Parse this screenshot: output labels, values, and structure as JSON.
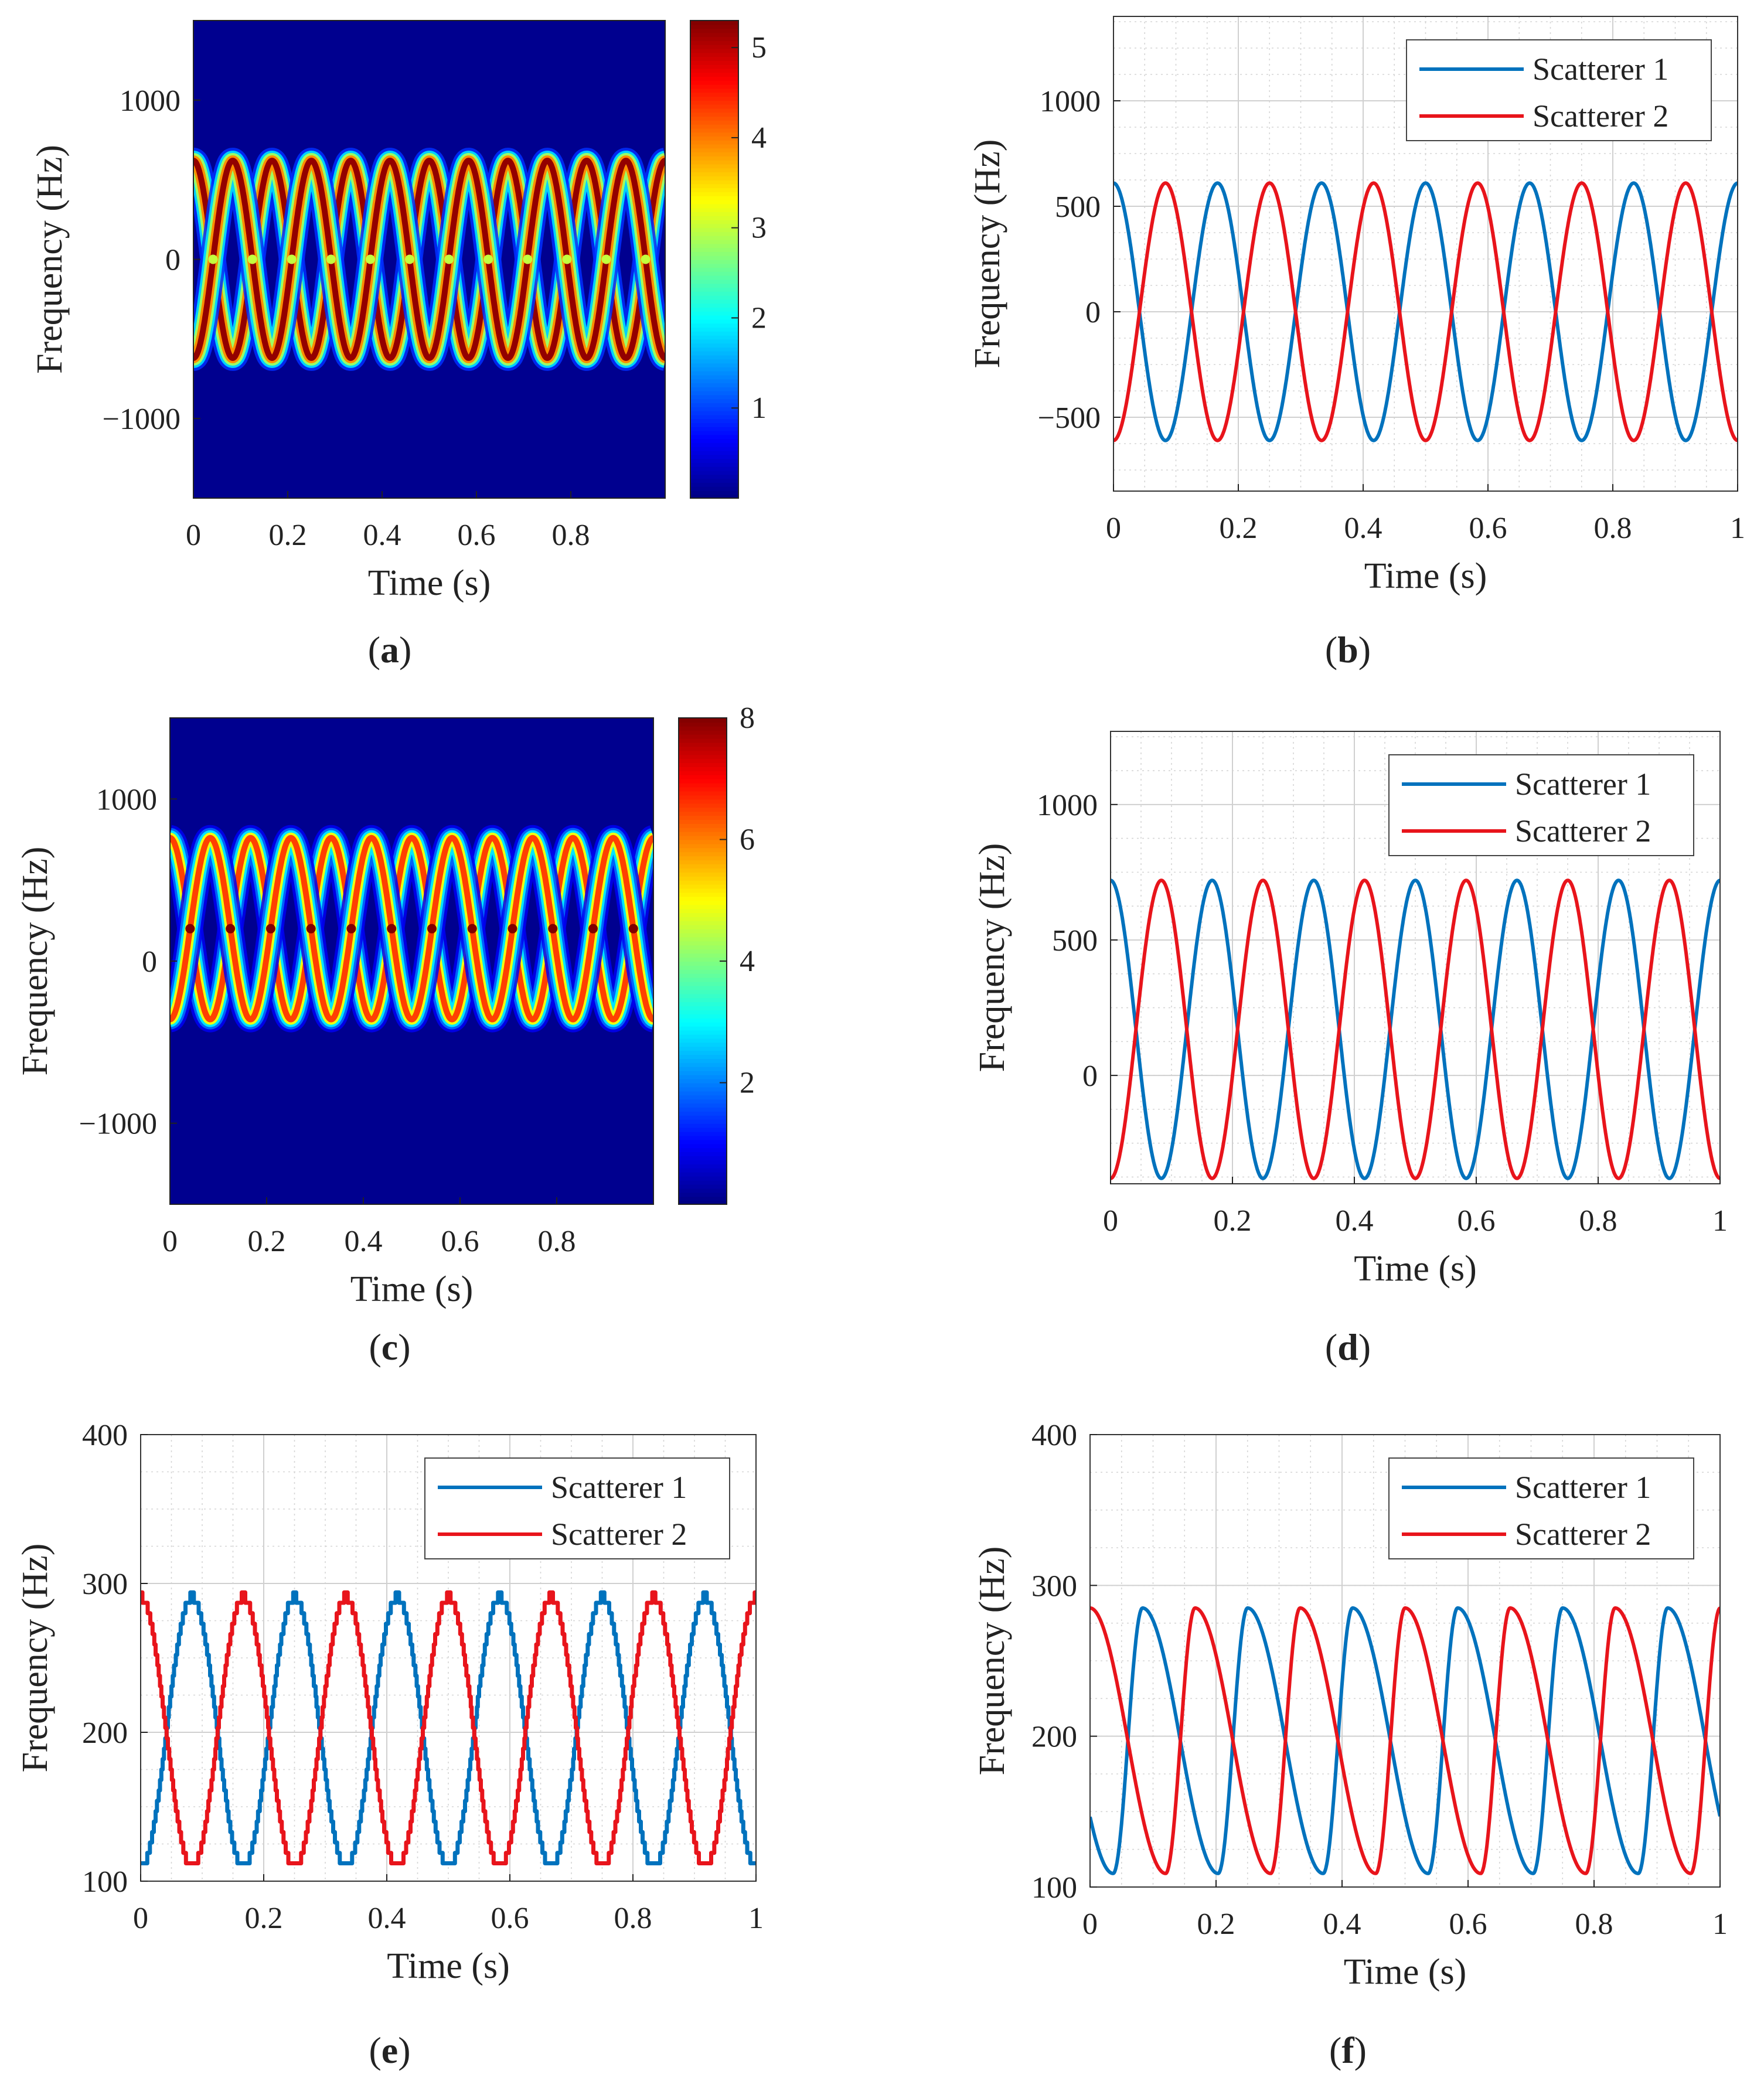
{
  "figure": {
    "panels": [
      "a",
      "b",
      "c",
      "d",
      "e",
      "f"
    ]
  },
  "chart_data": [
    {
      "id": "a",
      "type": "heatmap",
      "caption": "a",
      "xlabel": "Time (s)",
      "ylabel": "Frequency (Hz)",
      "xlim": [
        0,
        1
      ],
      "ylim": [
        -1500,
        1500
      ],
      "xticks": [
        0,
        0.2,
        0.4,
        0.6,
        0.8
      ],
      "xtick_labels": [
        "0",
        "0.2",
        "0.4",
        "0.6",
        "0.8"
      ],
      "yticks": [
        1000,
        0,
        -1000
      ],
      "ytick_labels": [
        "1000",
        "0",
        "−1000"
      ],
      "colorbar": {
        "min": 0,
        "max": 5.3,
        "ticks": [
          1,
          2,
          3,
          4,
          5
        ],
        "tick_labels": [
          "1",
          "2",
          "3",
          "4",
          "5"
        ]
      },
      "background_color": "#00008f",
      "curves": [
        {
          "name": "Scatterer 1",
          "offset": 0,
          "amplitude": 620,
          "period": 0.1667,
          "phase": 0
        },
        {
          "name": "Scatterer 2",
          "offset": 0,
          "amplitude": 620,
          "period": 0.1667,
          "phase": 3.14159
        }
      ],
      "peak_value": 5.2,
      "crossing_value": 3.0
    },
    {
      "id": "b",
      "type": "line",
      "caption": "b",
      "xlabel": "Time (s)",
      "ylabel": "Frequency (Hz)",
      "xlim": [
        0,
        1
      ],
      "ylim": [
        -850,
        1400
      ],
      "xticks": [
        0,
        0.2,
        0.4,
        0.6,
        0.8,
        1
      ],
      "xtick_labels": [
        "0",
        "0.2",
        "0.4",
        "0.6",
        "0.8",
        "1"
      ],
      "yticks": [
        1000,
        500,
        0,
        -500
      ],
      "ytick_labels": [
        "1000",
        "500",
        "0",
        "−500"
      ],
      "legend": "top-right",
      "series": [
        {
          "name": "Scatterer 1",
          "color": "#0072bd",
          "offset": 0,
          "amplitude": 610,
          "period": 0.1667,
          "phase": 0
        },
        {
          "name": "Scatterer 2",
          "color": "#e8141b",
          "offset": 0,
          "amplitude": 610,
          "period": 0.1667,
          "phase": 3.14159
        }
      ]
    },
    {
      "id": "c",
      "type": "heatmap",
      "caption": "c",
      "xlabel": "Time (s)",
      "ylabel": "Frequency (Hz)",
      "xlim": [
        0,
        1
      ],
      "ylim": [
        -1500,
        1500
      ],
      "xticks": [
        0,
        0.2,
        0.4,
        0.6,
        0.8
      ],
      "xtick_labels": [
        "0",
        "0.2",
        "0.4",
        "0.6",
        "0.8"
      ],
      "yticks": [
        1000,
        0,
        -1000
      ],
      "ytick_labels": [
        "1000",
        "0",
        "−1000"
      ],
      "colorbar": {
        "min": 0,
        "max": 8,
        "ticks": [
          2,
          4,
          6,
          8
        ],
        "tick_labels": [
          "2",
          "4",
          "6",
          "8"
        ]
      },
      "background_color": "#00008f",
      "curves": [
        {
          "name": "Scatterer 1",
          "offset": 200,
          "amplitude": 560,
          "period": 0.1667,
          "phase": 0
        },
        {
          "name": "Scatterer 2",
          "offset": 200,
          "amplitude": 560,
          "period": 0.1667,
          "phase": 3.14159
        }
      ],
      "peak_value": 6.5,
      "crossing_value": 8.0
    },
    {
      "id": "d",
      "type": "line",
      "caption": "d",
      "xlabel": "Time (s)",
      "ylabel": "Frequency (Hz)",
      "xlim": [
        0,
        1
      ],
      "ylim": [
        -400,
        1270
      ],
      "xticks": [
        0,
        0.2,
        0.4,
        0.6,
        0.8,
        1
      ],
      "xtick_labels": [
        "0",
        "0.2",
        "0.4",
        "0.6",
        "0.8",
        "1"
      ],
      "yticks": [
        1000,
        500,
        0
      ],
      "ytick_labels": [
        "1000",
        "500",
        "0"
      ],
      "legend": "top-right",
      "series": [
        {
          "name": "Scatterer 1",
          "color": "#0072bd",
          "offset": 170,
          "amplitude": 550,
          "period": 0.1667,
          "phase": 0
        },
        {
          "name": "Scatterer 2",
          "color": "#e8141b",
          "offset": 170,
          "amplitude": 550,
          "period": 0.1667,
          "phase": 3.14159
        }
      ]
    },
    {
      "id": "e",
      "type": "line",
      "caption": "e",
      "xlabel": "Time (s)",
      "ylabel": "Frequency (Hz)",
      "xlim": [
        0,
        1
      ],
      "ylim": [
        100,
        400
      ],
      "xticks": [
        0,
        0.2,
        0.4,
        0.6,
        0.8,
        1
      ],
      "xtick_labels": [
        "0",
        "0.2",
        "0.4",
        "0.6",
        "0.8",
        "1"
      ],
      "yticks": [
        400,
        300,
        200,
        100
      ],
      "ytick_labels": [
        "400",
        "300",
        "200",
        "100"
      ],
      "legend": "top-right",
      "series": [
        {
          "name": "Scatterer 1",
          "color": "#0072bd",
          "style": "stepped",
          "offset": 200,
          "amplitude": 91,
          "period": 0.1667,
          "phase": 3.14159,
          "min": 108,
          "max": 291
        },
        {
          "name": "Scatterer 2",
          "color": "#e8141b",
          "style": "stepped",
          "offset": 200,
          "amplitude": 91,
          "period": 0.1667,
          "phase": 0,
          "min": 108,
          "max": 291
        }
      ]
    },
    {
      "id": "f",
      "type": "line",
      "caption": "f",
      "xlabel": "Time (s)",
      "ylabel": "Frequency (Hz)",
      "xlim": [
        0,
        1
      ],
      "ylim": [
        100,
        400
      ],
      "xticks": [
        0,
        0.2,
        0.4,
        0.6,
        0.8,
        1
      ],
      "xtick_labels": [
        "0",
        "0.2",
        "0.4",
        "0.6",
        "0.8",
        "1"
      ],
      "yticks": [
        400,
        300,
        200,
        100
      ],
      "ytick_labels": [
        "400",
        "300",
        "200",
        "100"
      ],
      "legend": "top-right",
      "series": [
        {
          "name": "Scatterer 1",
          "color": "#0072bd",
          "style": "skewed",
          "offset": 197,
          "amplitude": 88,
          "period": 0.1667,
          "phase": 3.14159
        },
        {
          "name": "Scatterer 2",
          "color": "#e8141b",
          "style": "skewed",
          "offset": 197,
          "amplitude": 88,
          "period": 0.1667,
          "phase": 0
        }
      ]
    }
  ]
}
